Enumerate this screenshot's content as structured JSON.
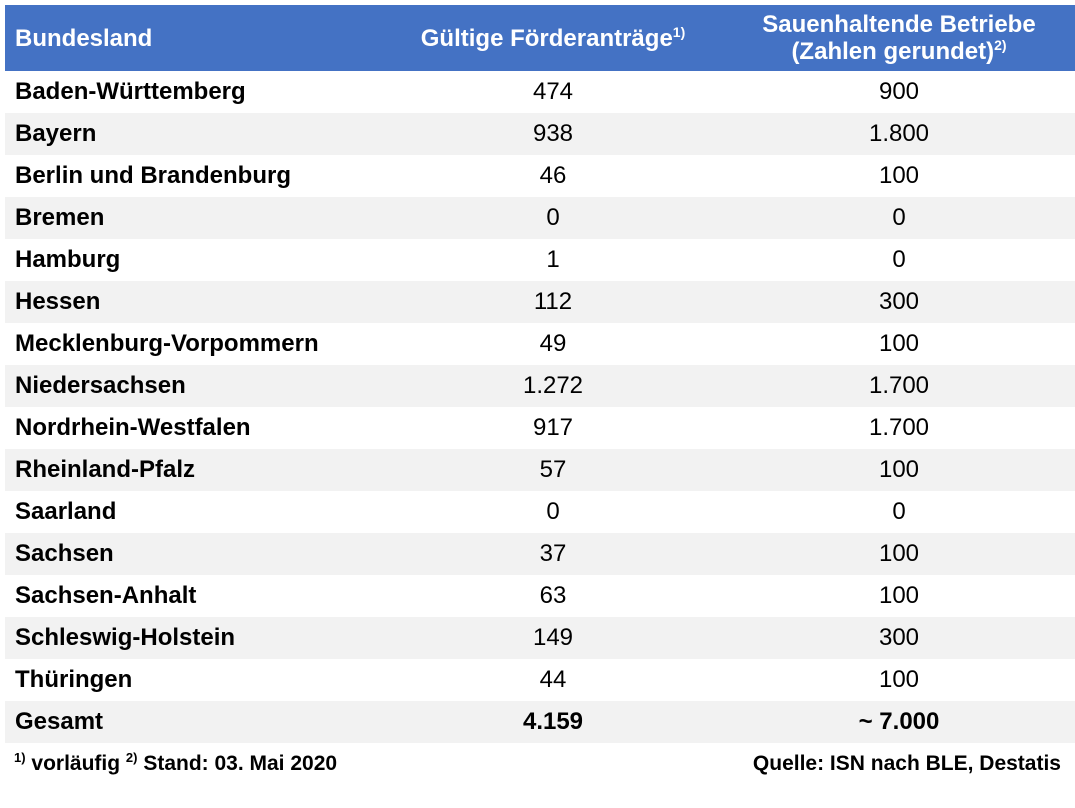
{
  "header": {
    "col1": "Bundesland",
    "col2": "Gültige Förderanträge",
    "col2_sup": "1)",
    "col3_line1": "Sauenhaltende Betriebe",
    "col3_line2": "(Zahlen gerundet)",
    "col3_sup": "2)"
  },
  "rows": [
    {
      "land": "Baden-Württemberg",
      "antraege": "474",
      "betriebe": "900"
    },
    {
      "land": "Bayern",
      "antraege": "938",
      "betriebe": "1.800"
    },
    {
      "land": "Berlin und Brandenburg",
      "antraege": "46",
      "betriebe": "100"
    },
    {
      "land": "Bremen",
      "antraege": "0",
      "betriebe": "0"
    },
    {
      "land": "Hamburg",
      "antraege": "1",
      "betriebe": "0"
    },
    {
      "land": "Hessen",
      "antraege": "112",
      "betriebe": "300"
    },
    {
      "land": "Mecklenburg-Vorpommern",
      "antraege": "49",
      "betriebe": "100"
    },
    {
      "land": "Niedersachsen",
      "antraege": "1.272",
      "betriebe": "1.700"
    },
    {
      "land": "Nordrhein-Westfalen",
      "antraege": "917",
      "betriebe": "1.700"
    },
    {
      "land": "Rheinland-Pfalz",
      "antraege": "57",
      "betriebe": "100"
    },
    {
      "land": "Saarland",
      "antraege": "0",
      "betriebe": "0"
    },
    {
      "land": "Sachsen",
      "antraege": "37",
      "betriebe": "100"
    },
    {
      "land": "Sachsen-Anhalt",
      "antraege": "63",
      "betriebe": "100"
    },
    {
      "land": "Schleswig-Holstein",
      "antraege": "149",
      "betriebe": "300"
    },
    {
      "land": "Thüringen",
      "antraege": "44",
      "betriebe": "100"
    }
  ],
  "total": {
    "land": "Gesamt",
    "antraege": "4.159",
    "betriebe": "~ 7.000"
  },
  "footer": {
    "note1_sup": "1)",
    "note1_text": " vorläufig ",
    "note2_sup": "2)",
    "note2_text": " Stand: 03. Mai 2020",
    "source": "Quelle: ISN nach BLE, Destatis"
  },
  "colors": {
    "header_bg": "#4472c4",
    "header_text": "#ffffff",
    "stripe": "#f2f2f2"
  }
}
